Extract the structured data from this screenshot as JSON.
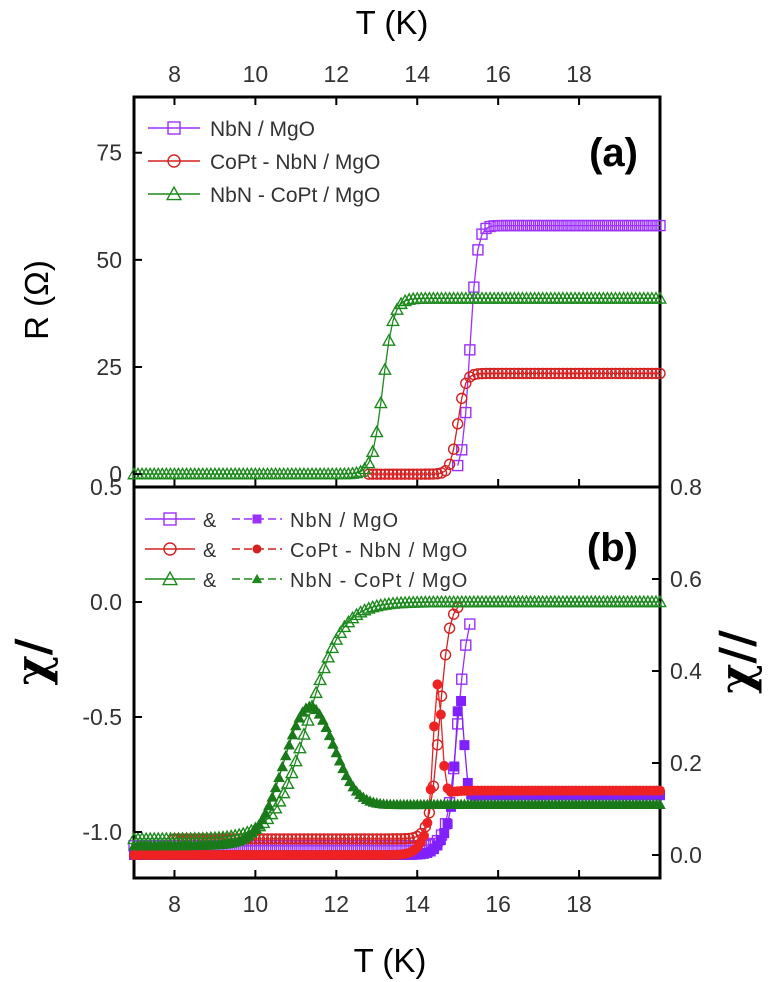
{
  "colors": {
    "purple": "#9b30ff",
    "purple_fill": "#8020ff",
    "red": "#d42020",
    "red_fill": "#ee2222",
    "green": "#1d8a1d",
    "green_fill": "#1a7a1a",
    "axis": "#000000"
  },
  "top_axis": {
    "label": "T (K)"
  },
  "bottom_axis": {
    "label": "T (K)"
  },
  "chart_data": [
    {
      "type": "line",
      "panel_label": "(a)",
      "xlabel": "T (K)",
      "ylabel": "R (Ω)",
      "xlim": [
        7,
        20
      ],
      "ylim": [
        -3,
        88
      ],
      "x_ticks": [
        8,
        10,
        12,
        14,
        16,
        18
      ],
      "y_ticks": [
        0,
        25,
        50,
        75
      ],
      "legend_position": "top-left",
      "series": [
        {
          "name": "NbN / MgO",
          "marker": "square-open",
          "color": "#9b30ff",
          "curve": {
            "low": 0,
            "high": 58,
            "tc": 15.3,
            "width": 0.09,
            "x_start": 15.0,
            "x_end": 20
          }
        },
        {
          "name": "CoPt - NbN / MgO",
          "marker": "circle-open",
          "color": "#d42020",
          "curve": {
            "low": 0,
            "high": 23.5,
            "tc": 15.0,
            "width": 0.09,
            "x_start": 12.8,
            "x_end": 20
          }
        },
        {
          "name": "NbN - CoPt / MgO",
          "marker": "triangle-open",
          "color": "#1d8a1d",
          "curve": {
            "low": 0,
            "high": 41,
            "tc": 13.15,
            "width": 0.13,
            "x_start": 7,
            "x_end": 20
          }
        }
      ]
    },
    {
      "type": "line",
      "panel_label": "(b)",
      "xlabel": "T (K)",
      "ylabel_left": "χ/",
      "ylabel_right": "χ//",
      "xlim": [
        7,
        20
      ],
      "ylim_left": [
        -1.2,
        0.5
      ],
      "ylim_right": [
        -0.05,
        0.8
      ],
      "x_ticks": [
        8,
        10,
        12,
        14,
        16,
        18
      ],
      "y_ticks_left": [
        "0.5",
        "0.0",
        "-0.5",
        "-1.0"
      ],
      "y_ticks_right": [
        "0.0",
        "0.2",
        "0.4",
        "0.6",
        "0.8"
      ],
      "legend_position": "top-left",
      "legend": [
        {
          "amp": "&",
          "name": "NbN / MgO",
          "color": "#9b30ff"
        },
        {
          "amp": "&",
          "name": "CoPt - NbN / MgO",
          "color": "#d42020"
        },
        {
          "amp": "&",
          "name": "NbN -  CoPt / MgO",
          "color": "#1d8a1d"
        }
      ],
      "series": [
        {
          "name": "NbN / MgO χ/",
          "axis": "left",
          "marker": "square-open",
          "color": "#9b30ff",
          "curve": {
            "low": -1.06,
            "high": 0.0,
            "tc": 15.0,
            "width": 0.13,
            "x_start": 7,
            "x_end": 15.3
          }
        },
        {
          "name": "CoPt - NbN / MgO χ/",
          "axis": "left",
          "marker": "circle-open",
          "color": "#d42020",
          "curve": {
            "low": -1.03,
            "high": 0.0,
            "tc": 14.55,
            "width": 0.12,
            "x_start": 8.0,
            "x_end": 15.0
          }
        },
        {
          "name": "NbN - CoPt / MgO χ/",
          "axis": "left",
          "marker": "triangle-open",
          "color": "#1d8a1d",
          "curve": {
            "low": -1.03,
            "high": 0.0,
            "tc": 11.3,
            "width": 0.42,
            "x_start": 7,
            "x_end": 20
          }
        },
        {
          "name": "NbN / MgO χ//",
          "axis": "right",
          "marker": "square-filled",
          "color": "#8020ff",
          "curve": {
            "base_low": 0.0,
            "base_high": 0.13,
            "peak_x": 15.05,
            "peak_y": 0.36,
            "peak_w": 0.1,
            "step_x": 14.75,
            "step_w": 0.15,
            "x_start": 7,
            "x_end": 20
          }
        },
        {
          "name": "CoPt - NbN / MgO χ//",
          "axis": "right",
          "marker": "circle-filled",
          "color": "#ee2222",
          "curve": {
            "base_low": 0.0,
            "base_high": 0.14,
            "peak_x": 14.5,
            "peak_y": 0.4,
            "peak_w": 0.1,
            "step_x": 14.3,
            "step_w": 0.15,
            "x_start": 7,
            "x_end": 20
          }
        },
        {
          "name": "NbN - CoPt / MgO χ//",
          "axis": "right",
          "marker": "triangle-filled",
          "color": "#1a7a1a",
          "curve": {
            "base_low": 0.02,
            "base_high": 0.11,
            "peak_x": 11.3,
            "peak_y": 0.35,
            "peak_w": 0.6,
            "step_x": 10.9,
            "step_w": 0.5,
            "x_start": 7,
            "x_end": 20
          }
        }
      ]
    }
  ]
}
